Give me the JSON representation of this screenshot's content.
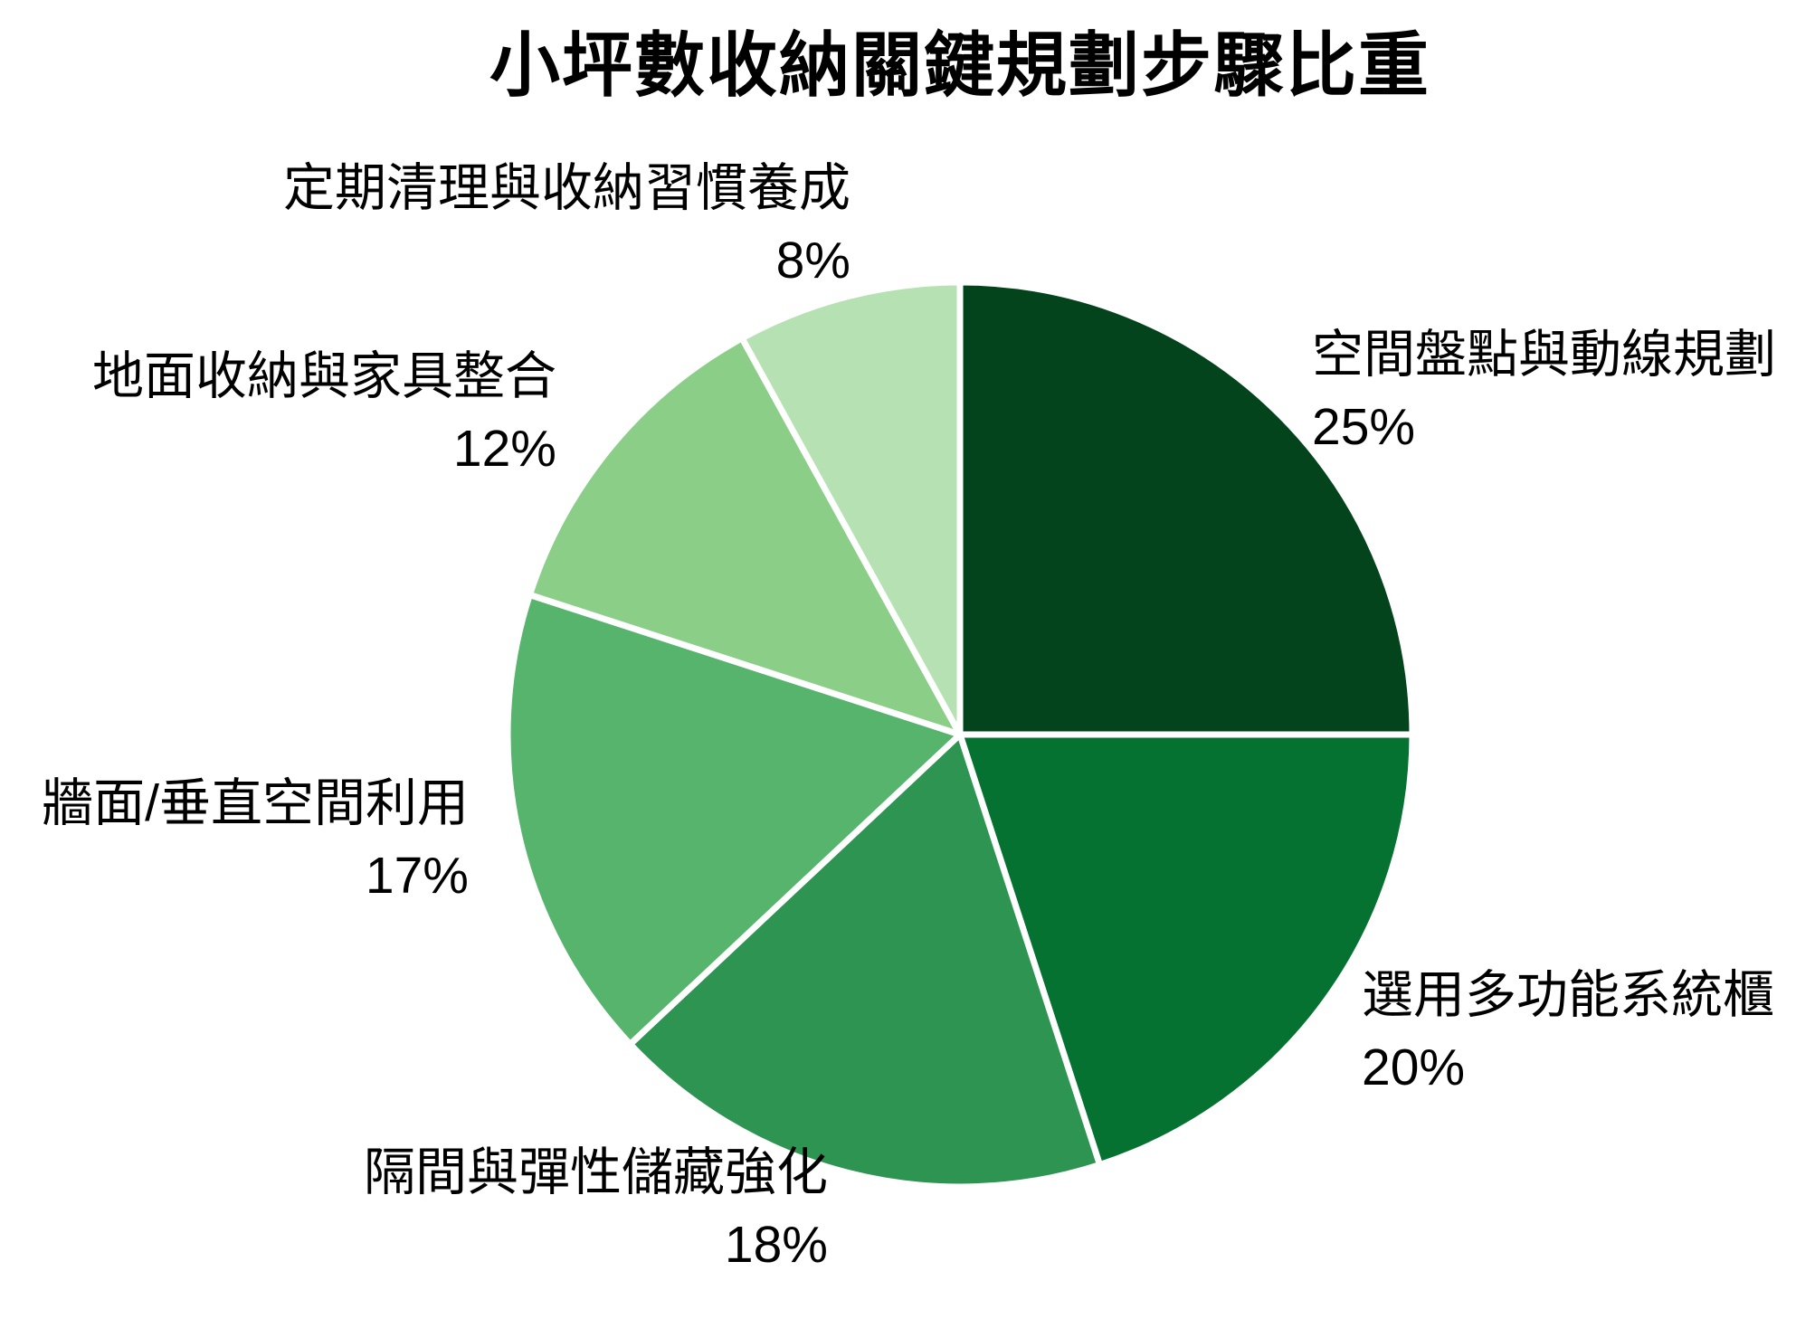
{
  "chart_data": {
    "type": "pie",
    "title": "小坪數收納關鍵規劃步驟比重",
    "unit": "percent",
    "start_angle": "12 o'clock",
    "direction": "clockwise",
    "legend": "none",
    "labels_position": "outside",
    "background": "#ffffff",
    "separator_color": "#ffffff",
    "text_color": "#000000",
    "slices": [
      {
        "label": "空間盤點與動線規劃",
        "value": 25,
        "pct": "25%",
        "color": "#03441c"
      },
      {
        "label": "選用多功能系統櫃",
        "value": 20,
        "pct": "20%",
        "color": "#057231"
      },
      {
        "label": "隔間與彈性儲藏強化",
        "value": 18,
        "pct": "18%",
        "color": "#2e9452"
      },
      {
        "label": "牆面/垂直空間利用",
        "value": 17,
        "pct": "17%",
        "color": "#56b46c"
      },
      {
        "label": "地面收納與家具整合",
        "value": 12,
        "pct": "12%",
        "color": "#8bce88"
      },
      {
        "label": "定期清理與收納習慣養成",
        "value": 8,
        "pct": "8%",
        "color": "#b6e2b3"
      }
    ]
  }
}
